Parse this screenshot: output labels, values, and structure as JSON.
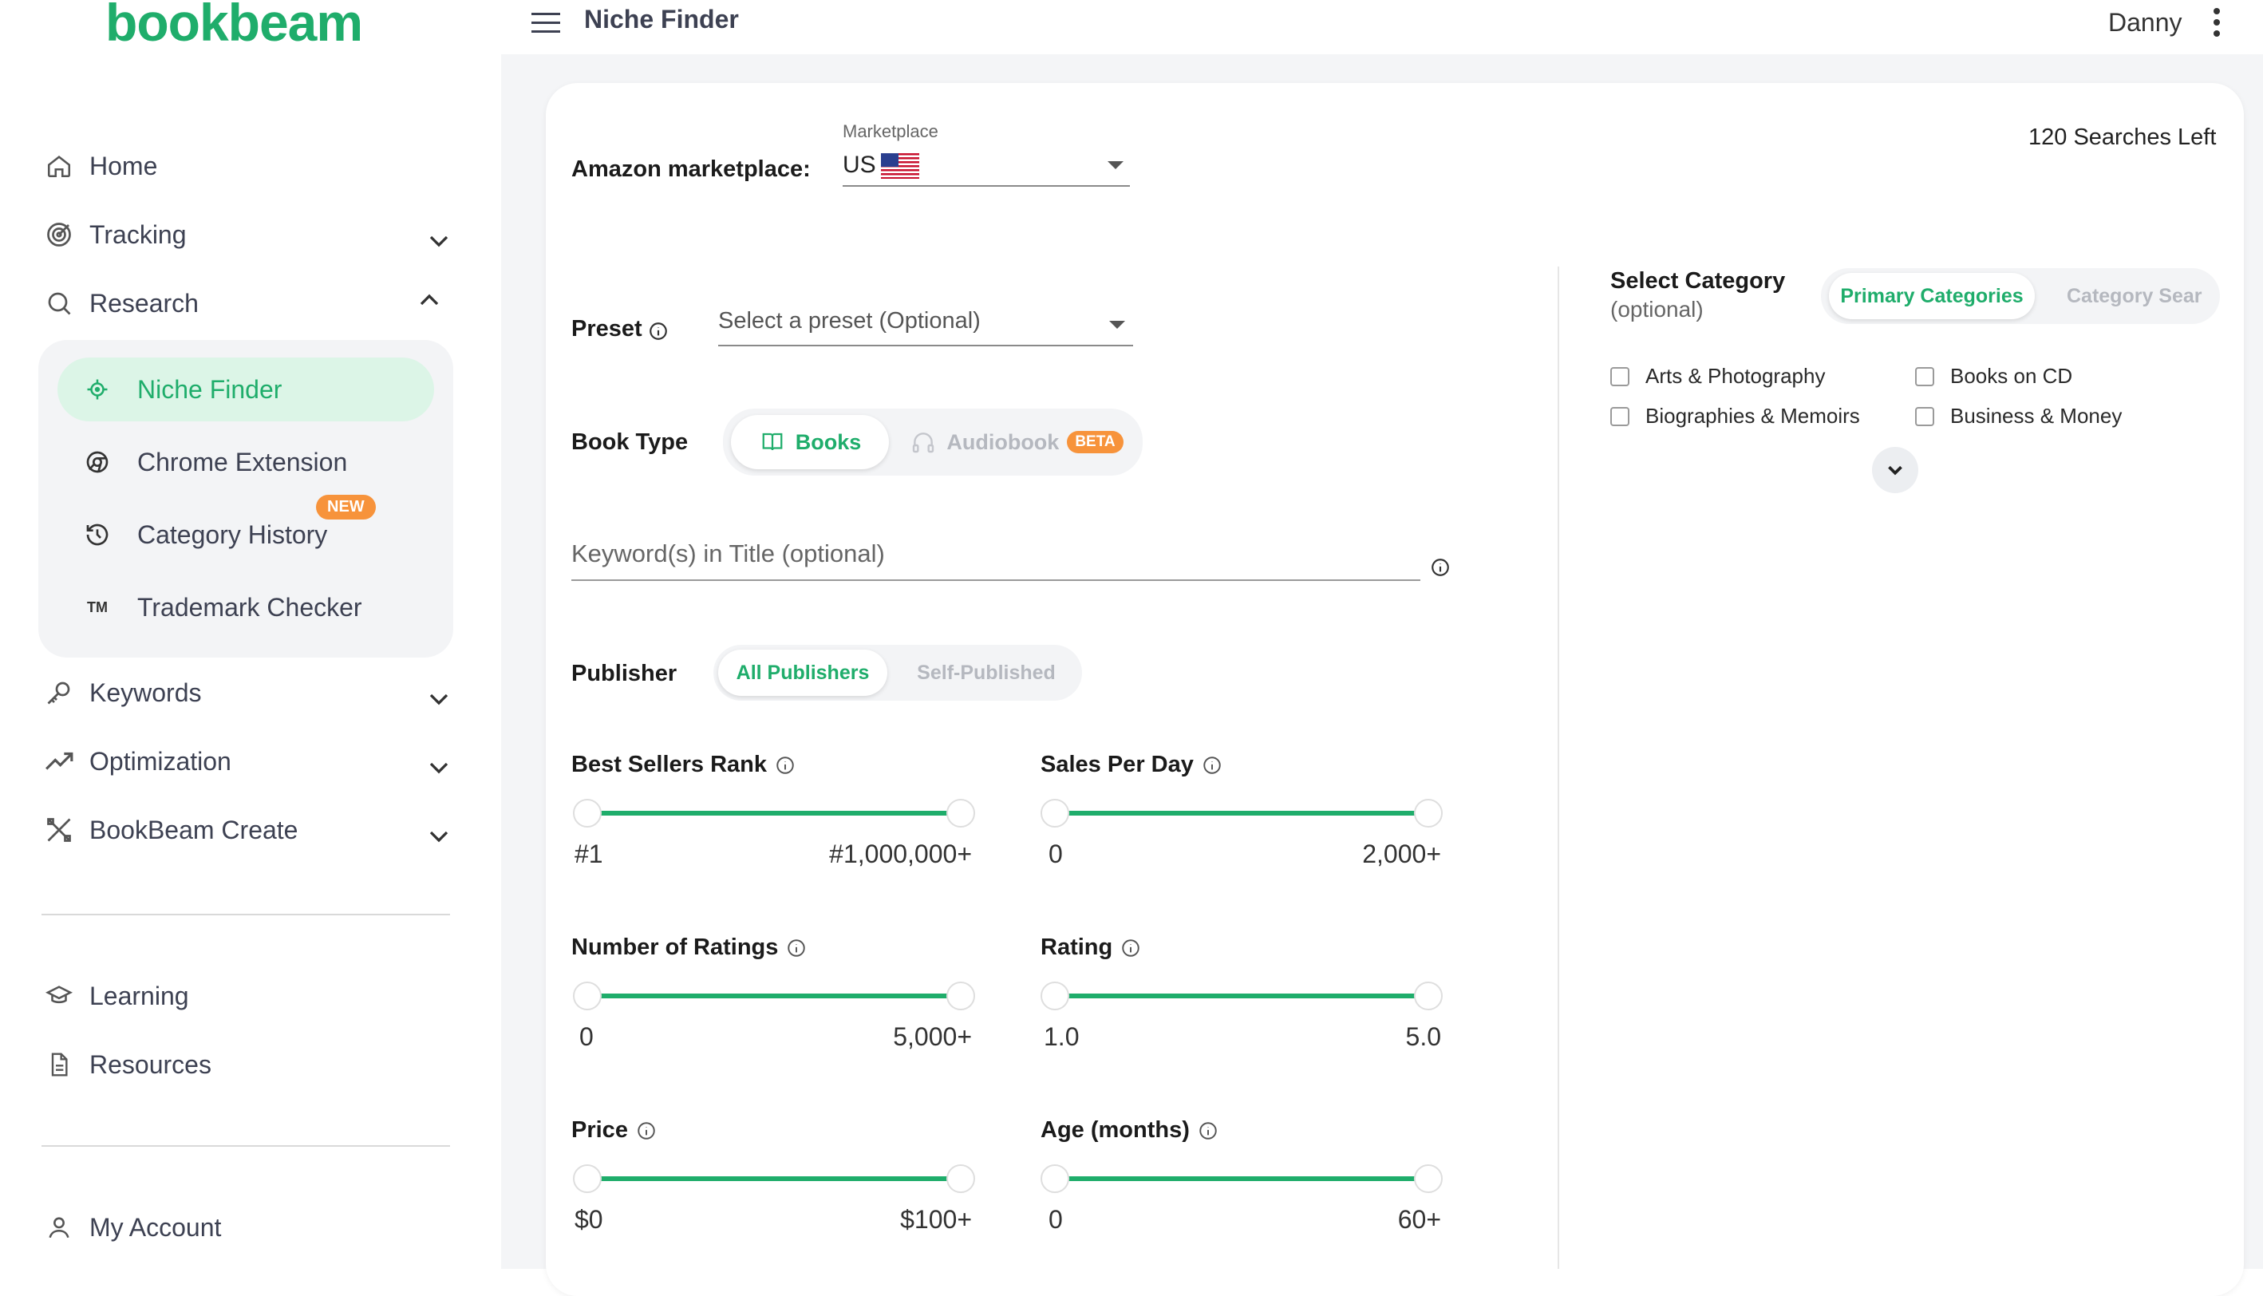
{
  "app": {
    "logo": "bookbeam"
  },
  "sidebar": {
    "home": "Home",
    "tracking": "Tracking",
    "research": "Research",
    "research_items": {
      "niche_finder": "Niche Finder",
      "chrome_extension": "Chrome Extension",
      "category_history": "Category History",
      "category_history_badge": "NEW",
      "trademark_checker": "Trademark Checker",
      "trademark_glyph": "TM"
    },
    "keywords": "Keywords",
    "optimization": "Optimization",
    "bookbeam_create": "BookBeam Create",
    "learning": "Learning",
    "resources": "Resources",
    "my_account": "My Account"
  },
  "header": {
    "title": "Niche Finder",
    "user": "Danny"
  },
  "main": {
    "marketplace": {
      "label": "Amazon marketplace:",
      "field_caption": "Marketplace",
      "value": "US"
    },
    "searches_left": "120 Searches Left",
    "preset": {
      "label": "Preset",
      "placeholder": "Select a preset (Optional)"
    },
    "book_type": {
      "label": "Book Type",
      "books": "Books",
      "audiobook": "Audiobook",
      "beta": "BETA"
    },
    "keyword": {
      "placeholder": "Keyword(s) in Title (optional)"
    },
    "publisher": {
      "label": "Publisher",
      "all": "All Publishers",
      "self": "Self-Published"
    },
    "sliders": {
      "bsr": {
        "title": "Best Sellers Rank",
        "min": "#1",
        "max": "#1,000,000+"
      },
      "sales": {
        "title": "Sales Per Day",
        "min": "0",
        "max": "2,000+"
      },
      "ratings": {
        "title": "Number of Ratings",
        "min": "0",
        "max": "5,000+"
      },
      "rating": {
        "title": "Rating",
        "min": "1.0",
        "max": "5.0"
      },
      "price": {
        "title": "Price",
        "min": "$0",
        "max": "$100+"
      },
      "age": {
        "title": "Age (months)",
        "min": "0",
        "max": "60+"
      }
    },
    "category": {
      "title": "Select Category",
      "subtitle": "(optional)",
      "tab_primary": "Primary Categories",
      "tab_search": "Category Sear",
      "items": [
        "Arts & Photography",
        "Books on CD",
        "Biographies & Memoirs",
        "Business & Money"
      ]
    }
  },
  "colors": {
    "accent": "#1fad6b",
    "badge": "#f7933b"
  }
}
